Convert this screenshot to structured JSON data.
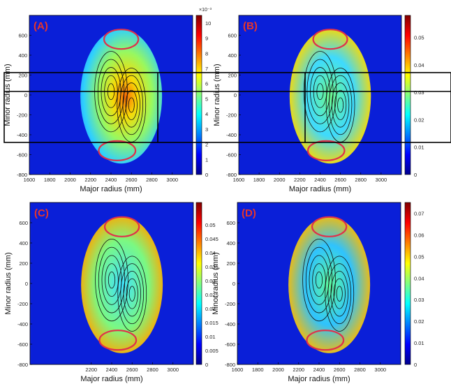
{
  "chart_data": [
    {
      "type": "heatmap",
      "panel_label": "(A)",
      "xlabel": "Major radius (mm)",
      "ylabel": "Minor radius (mm)",
      "xlim": [
        1600,
        3200
      ],
      "ylim": [
        -800,
        800
      ],
      "x_ticks": [
        "1600",
        "1800",
        "2000",
        "2200",
        "2400",
        "2600",
        "2800",
        "3000"
      ],
      "y_ticks": [
        "600",
        "400",
        "200",
        "0",
        "-200",
        "-400",
        "-600",
        "-800"
      ],
      "colorbar": {
        "range": [
          0,
          0.0105
        ],
        "multiplier": "×10⁻³",
        "ticks": [
          "10",
          "9",
          "8",
          "7",
          "6",
          "5",
          "4",
          "3",
          "2",
          "1",
          "0"
        ]
      }
    },
    {
      "type": "heatmap",
      "panel_label": "(B)",
      "xlabel": "Major radius (mm)",
      "ylabel": "Minor radius (mm)",
      "xlim": [
        1600,
        3200
      ],
      "ylim": [
        -800,
        800
      ],
      "x_ticks": [
        "1600",
        "1800",
        "2000",
        "2200",
        "2400",
        "2600",
        "2800",
        "3000"
      ],
      "y_ticks": [
        "600",
        "400",
        "200",
        "0",
        "-200",
        "-400",
        "-600",
        "-800"
      ],
      "colorbar": {
        "range": [
          0,
          0.058
        ],
        "ticks": [
          "0.05",
          "0.04",
          "0.03",
          "0.02",
          "0.01",
          "0"
        ]
      }
    },
    {
      "type": "heatmap",
      "panel_label": "(C)",
      "xlabel": "Major radius (mm)",
      "ylabel": "Minor radius (mm)",
      "xlim": [
        1600,
        3200
      ],
      "ylim": [
        -800,
        800
      ],
      "x_ticks": [
        "2200",
        "2400",
        "2600",
        "2800",
        "3000"
      ],
      "y_ticks": [
        "600",
        "400",
        "200",
        "0",
        "-200",
        "-400",
        "-600",
        "-800"
      ],
      "colorbar": {
        "range": [
          0,
          0.058
        ],
        "ticks": [
          "0.05",
          "0.045",
          "0.04",
          "0.035",
          "0.03",
          "0.025",
          "0.02",
          "0.015",
          "0.01",
          "0.005",
          "0"
        ]
      }
    },
    {
      "type": "heatmap",
      "panel_label": "(D)",
      "xlabel": "Major radius (mm)",
      "ylabel": "Minor radius (mm)",
      "xlim": [
        1600,
        3200
      ],
      "ylim": [
        -800,
        800
      ],
      "x_ticks": [
        "1600",
        "1800",
        "2000",
        "2200",
        "2400",
        "2600",
        "2800",
        "3000"
      ],
      "y_ticks": [
        "600",
        "400",
        "200",
        "0",
        "-200",
        "-400",
        "-600",
        "-800"
      ],
      "colorbar": {
        "range": [
          0,
          0.075
        ],
        "ticks": [
          "0.07",
          "0.06",
          "0.05",
          "0.04",
          "0.03",
          "0.02",
          "0.01",
          "0"
        ]
      }
    }
  ]
}
